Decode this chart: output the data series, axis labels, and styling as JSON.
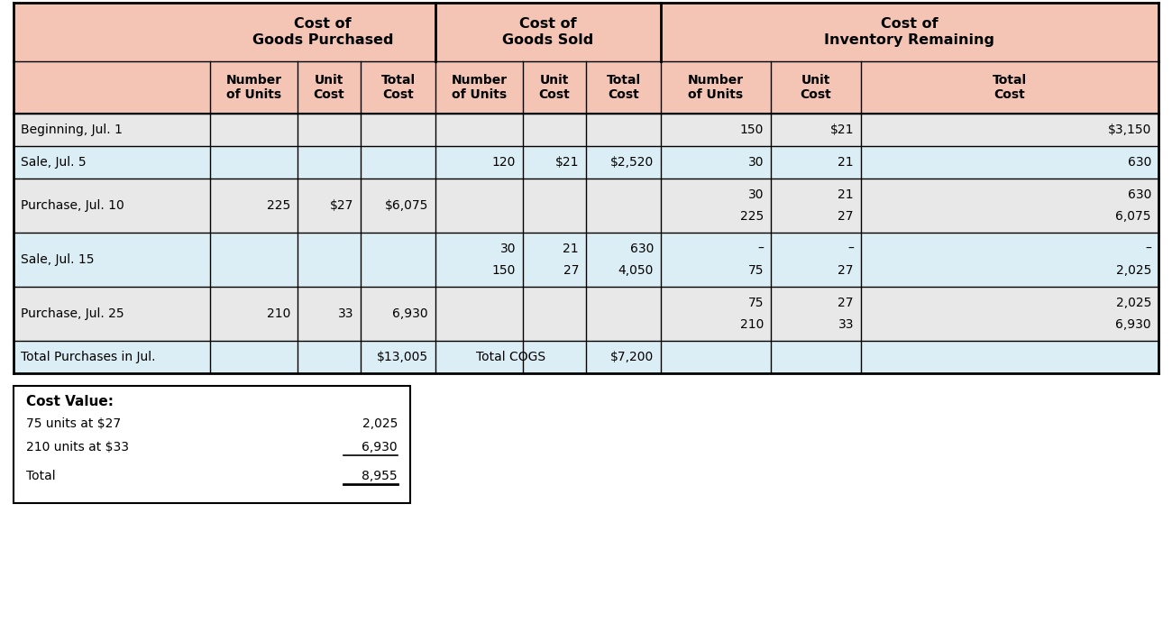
{
  "header_bg": "#f4c4b4",
  "subheader_bg": "#f4c4b4",
  "row_bg_white": "#e8e8e8",
  "row_bg_light": "#dceef5",
  "border_color": "#000000",
  "text_color": "#000000",
  "fig_bg": "#ffffff",
  "cost_value_box": {
    "title": "Cost Value:",
    "lines": [
      {
        "label": "75 units at $27",
        "value": "2,025",
        "underline": false
      },
      {
        "label": "210 units at $33",
        "value": "6,930",
        "underline": true
      },
      {
        "label": "Total",
        "value": "8,955",
        "underline": false
      }
    ]
  }
}
